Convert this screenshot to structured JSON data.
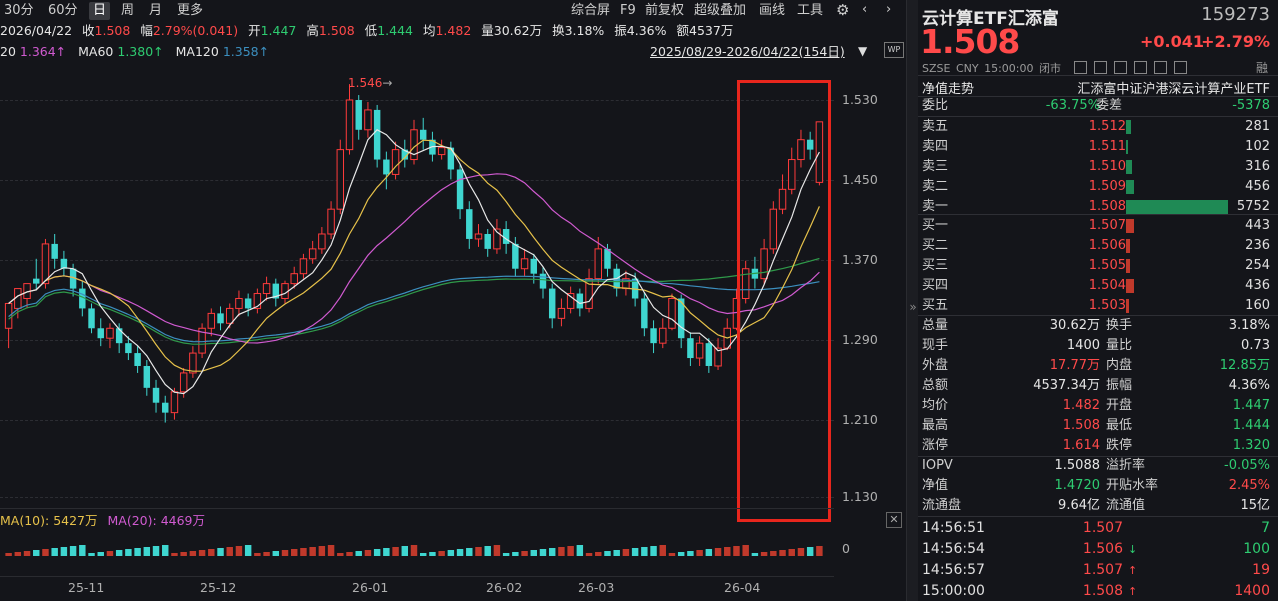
{
  "toolbar": {
    "periods": [
      "30分",
      "60分",
      "日",
      "周",
      "月",
      "更多"
    ],
    "active_period": "日",
    "right_items": [
      "综合屏",
      "F9",
      "前复权",
      "超级叠加",
      "画线",
      "工具"
    ]
  },
  "quote_line": {
    "date": "2026/04/22",
    "close_label": "收",
    "close": "1.508",
    "range_label": "幅",
    "range": "2.79%(0.041)",
    "open_label": "开",
    "open": "1.447",
    "high_label": "高",
    "high": "1.508",
    "low_label": "低",
    "low": "1.444",
    "avg_label": "均",
    "avg": "1.482",
    "vol_label": "量",
    "vol": "30.62万",
    "turn_label": "换",
    "turn": "3.18%",
    "amp_label": "振",
    "amp": "4.36%",
    "amt_label": "额",
    "amt": "4537万"
  },
  "ma_line": {
    "ma20_label": "20",
    "ma20": "1.364↑",
    "ma60_label": "MA60",
    "ma60": "1.380↑",
    "ma120_label": "MA120",
    "ma120": "1.358↑",
    "date_range": "2025/08/29-2026/04/22(154日)"
  },
  "chart_data": {
    "type": "candlestick",
    "y_ticks": [
      "1.530",
      "1.450",
      "1.370",
      "1.290",
      "1.210",
      "1.130"
    ],
    "ylim": [
      1.11,
      1.56
    ],
    "x_labels": [
      "25-11",
      "25-12",
      "26-01",
      "26-02",
      "26-03",
      "26-04"
    ],
    "max_annotation": "1.546",
    "ma_colors": {
      "ma5": "#e8e8e8",
      "ma10": "#e6c14a",
      "ma20": "#d05ad0",
      "ma60": "#2f9a4a",
      "ma120": "#3c8fbf"
    },
    "up_color": "#ff3b3b",
    "down_color": "#3fd6d0",
    "candles": [
      [
        1.3,
        1.325,
        1.31,
        1.28
      ],
      [
        1.32,
        1.34,
        1.33,
        1.31
      ],
      [
        1.33,
        1.345,
        1.34,
        1.32
      ],
      [
        1.35,
        1.345,
        1.37,
        1.338
      ],
      [
        1.345,
        1.385,
        1.39,
        1.34
      ],
      [
        1.385,
        1.37,
        1.395,
        1.36
      ],
      [
        1.37,
        1.36,
        1.378,
        1.352
      ],
      [
        1.36,
        1.34,
        1.365,
        1.332
      ],
      [
        1.34,
        1.32,
        1.348,
        1.312
      ],
      [
        1.32,
        1.3,
        1.325,
        1.295
      ],
      [
        1.3,
        1.29,
        1.31,
        1.282
      ],
      [
        1.29,
        1.3,
        1.305,
        1.28
      ],
      [
        1.3,
        1.285,
        1.305,
        1.275
      ],
      [
        1.285,
        1.275,
        1.292,
        1.268
      ],
      [
        1.275,
        1.262,
        1.282,
        1.255
      ],
      [
        1.262,
        1.24,
        1.268,
        1.232
      ],
      [
        1.24,
        1.225,
        1.248,
        1.215
      ],
      [
        1.225,
        1.215,
        1.232,
        1.205
      ],
      [
        1.215,
        1.236,
        1.24,
        1.208
      ],
      [
        1.236,
        1.255,
        1.26,
        1.23
      ],
      [
        1.255,
        1.275,
        1.282,
        1.25
      ],
      [
        1.275,
        1.3,
        1.305,
        1.27
      ],
      [
        1.3,
        1.315,
        1.32,
        1.292
      ],
      [
        1.315,
        1.305,
        1.322,
        1.298
      ],
      [
        1.305,
        1.32,
        1.325,
        1.3
      ],
      [
        1.32,
        1.33,
        1.338,
        1.312
      ],
      [
        1.33,
        1.32,
        1.335,
        1.312
      ],
      [
        1.32,
        1.335,
        1.34,
        1.315
      ],
      [
        1.335,
        1.345,
        1.352,
        1.328
      ],
      [
        1.345,
        1.33,
        1.35,
        1.322
      ],
      [
        1.33,
        1.345,
        1.348,
        1.325
      ],
      [
        1.345,
        1.355,
        1.362,
        1.34
      ],
      [
        1.355,
        1.37,
        1.375,
        1.35
      ],
      [
        1.37,
        1.38,
        1.388,
        1.365
      ],
      [
        1.38,
        1.395,
        1.402,
        1.375
      ],
      [
        1.395,
        1.42,
        1.428,
        1.39
      ],
      [
        1.42,
        1.48,
        1.49,
        1.415
      ],
      [
        1.48,
        1.53,
        1.546,
        1.475
      ],
      [
        1.53,
        1.5,
        1.535,
        1.49
      ],
      [
        1.5,
        1.52,
        1.528,
        1.492
      ],
      [
        1.52,
        1.47,
        1.525,
        1.462
      ],
      [
        1.47,
        1.455,
        1.478,
        1.44
      ],
      [
        1.455,
        1.48,
        1.488,
        1.45
      ],
      [
        1.48,
        1.47,
        1.49,
        1.462
      ],
      [
        1.47,
        1.5,
        1.51,
        1.465
      ],
      [
        1.5,
        1.49,
        1.512,
        1.48
      ],
      [
        1.49,
        1.475,
        1.498,
        1.468
      ],
      [
        1.475,
        1.482,
        1.49,
        1.47
      ],
      [
        1.482,
        1.46,
        1.488,
        1.45
      ],
      [
        1.46,
        1.42,
        1.465,
        1.41
      ],
      [
        1.42,
        1.39,
        1.428,
        1.38
      ],
      [
        1.39,
        1.395,
        1.405,
        1.382
      ],
      [
        1.395,
        1.38,
        1.4,
        1.372
      ],
      [
        1.38,
        1.4,
        1.41,
        1.375
      ],
      [
        1.4,
        1.385,
        1.408,
        1.375
      ],
      [
        1.385,
        1.36,
        1.392,
        1.352
      ],
      [
        1.36,
        1.37,
        1.38,
        1.352
      ],
      [
        1.37,
        1.355,
        1.375,
        1.345
      ],
      [
        1.355,
        1.34,
        1.362,
        1.33
      ],
      [
        1.34,
        1.31,
        1.345,
        1.3
      ],
      [
        1.31,
        1.32,
        1.33,
        1.302
      ],
      [
        1.32,
        1.335,
        1.342,
        1.315
      ],
      [
        1.335,
        1.32,
        1.34,
        1.312
      ],
      [
        1.32,
        1.35,
        1.36,
        1.316
      ],
      [
        1.35,
        1.38,
        1.392,
        1.345
      ],
      [
        1.38,
        1.36,
        1.385,
        1.352
      ],
      [
        1.36,
        1.34,
        1.365,
        1.332
      ],
      [
        1.34,
        1.35,
        1.358,
        1.333
      ],
      [
        1.35,
        1.33,
        1.356,
        1.322
      ],
      [
        1.33,
        1.3,
        1.336,
        1.292
      ],
      [
        1.3,
        1.285,
        1.308,
        1.275
      ],
      [
        1.285,
        1.3,
        1.31,
        1.28
      ],
      [
        1.3,
        1.33,
        1.335,
        1.298
      ],
      [
        1.33,
        1.29,
        1.334,
        1.28
      ],
      [
        1.29,
        1.27,
        1.296,
        1.262
      ],
      [
        1.27,
        1.285,
        1.292,
        1.262
      ],
      [
        1.285,
        1.262,
        1.29,
        1.255
      ],
      [
        1.262,
        1.28,
        1.29,
        1.258
      ],
      [
        1.28,
        1.3,
        1.31,
        1.278
      ],
      [
        1.3,
        1.33,
        1.34,
        1.298
      ],
      [
        1.33,
        1.36,
        1.368,
        1.325
      ],
      [
        1.36,
        1.35,
        1.372,
        1.34
      ],
      [
        1.35,
        1.38,
        1.39,
        1.345
      ],
      [
        1.38,
        1.42,
        1.428,
        1.375
      ],
      [
        1.42,
        1.44,
        1.455,
        1.415
      ],
      [
        1.44,
        1.47,
        1.482,
        1.435
      ],
      [
        1.47,
        1.49,
        1.5,
        1.462
      ],
      [
        1.49,
        1.48,
        1.498,
        1.47
      ],
      [
        1.447,
        1.508,
        1.508,
        1.444
      ]
    ],
    "volume_legend": {
      "ma10_label": "MA(10):",
      "ma10": "5427万",
      "ma20_label": "MA(20):",
      "ma20": "4469万"
    },
    "volume_axis_label": "0"
  },
  "panel": {
    "name": "云计算ETF汇添富",
    "code": "159273",
    "price": "1.508",
    "change": "+0.041",
    "change_pct": "+2.79%",
    "meta": [
      "SZSE",
      "CNY",
      "15:00:00",
      "闭市"
    ],
    "meta_right": "融",
    "nav_trend_label": "净值走势",
    "index_name": "汇添富中证沪港深云计算产业ETF",
    "weibi_label": "委比",
    "weibi": "-63.75%",
    "weicha_label": "委差",
    "weicha": "-5378",
    "asks": [
      {
        "label": "卖五",
        "price": "1.512",
        "vol": "281",
        "ratio": 0.05
      },
      {
        "label": "卖四",
        "price": "1.511",
        "vol": "102",
        "ratio": 0.02
      },
      {
        "label": "卖三",
        "price": "1.510",
        "vol": "316",
        "ratio": 0.055
      },
      {
        "label": "卖二",
        "price": "1.509",
        "vol": "456",
        "ratio": 0.08
      },
      {
        "label": "卖一",
        "price": "1.508",
        "vol": "5752",
        "ratio": 1.0
      }
    ],
    "bids": [
      {
        "label": "买一",
        "price": "1.507",
        "vol": "443",
        "ratio": 0.077
      },
      {
        "label": "买二",
        "price": "1.506",
        "vol": "236",
        "ratio": 0.041
      },
      {
        "label": "买三",
        "price": "1.505",
        "vol": "254",
        "ratio": 0.044
      },
      {
        "label": "买四",
        "price": "1.504",
        "vol": "436",
        "ratio": 0.076
      },
      {
        "label": "买五",
        "price": "1.503",
        "vol": "160",
        "ratio": 0.028
      }
    ],
    "stats": [
      {
        "l1": "总量",
        "v1": "30.62万",
        "c1": "white",
        "l2": "换手",
        "v2": "3.18%",
        "c2": "white"
      },
      {
        "l1": "现手",
        "v1": "1400",
        "c1": "white",
        "l2": "量比",
        "v2": "0.73",
        "c2": "white"
      },
      {
        "l1": "外盘",
        "v1": "17.77万",
        "c1": "red",
        "l2": "内盘",
        "v2": "12.85万",
        "c2": "green"
      },
      {
        "l1": "总额",
        "v1": "4537.34万",
        "c1": "white",
        "l2": "振幅",
        "v2": "4.36%",
        "c2": "white"
      },
      {
        "l1": "均价",
        "v1": "1.482",
        "c1": "red",
        "l2": "开盘",
        "v2": "1.447",
        "c2": "green"
      },
      {
        "l1": "最高",
        "v1": "1.508",
        "c1": "red",
        "l2": "最低",
        "v2": "1.444",
        "c2": "green"
      },
      {
        "l1": "涨停",
        "v1": "1.614",
        "c1": "red",
        "l2": "跌停",
        "v2": "1.320",
        "c2": "green"
      }
    ],
    "stats2": [
      {
        "l1": "IOPV",
        "v1": "1.5088",
        "c1": "white",
        "l2": "溢折率",
        "v2": "-0.05%",
        "c2": "green"
      },
      {
        "l1": "净值",
        "v1": "1.4720",
        "c1": "green",
        "l2": "开贴水率",
        "v2": "2.45%",
        "c2": "red"
      },
      {
        "l1": "流通盘",
        "v1": "9.64亿",
        "c1": "white",
        "l2": "流通值",
        "v2": "15亿",
        "c2": "white"
      }
    ],
    "ticks": [
      {
        "time": "14:56:51",
        "price": "1.507",
        "arrow": "",
        "qty": "7",
        "qc": "green"
      },
      {
        "time": "14:56:54",
        "price": "1.506",
        "arrow": "↓",
        "ac": "green",
        "qty": "100",
        "qc": "green"
      },
      {
        "time": "14:56:57",
        "price": "1.507",
        "arrow": "↑",
        "ac": "red",
        "qty": "19",
        "qc": "red"
      },
      {
        "time": "15:00:00",
        "price": "1.508",
        "arrow": "↑",
        "ac": "red",
        "qty": "1400",
        "qc": "red"
      }
    ]
  }
}
